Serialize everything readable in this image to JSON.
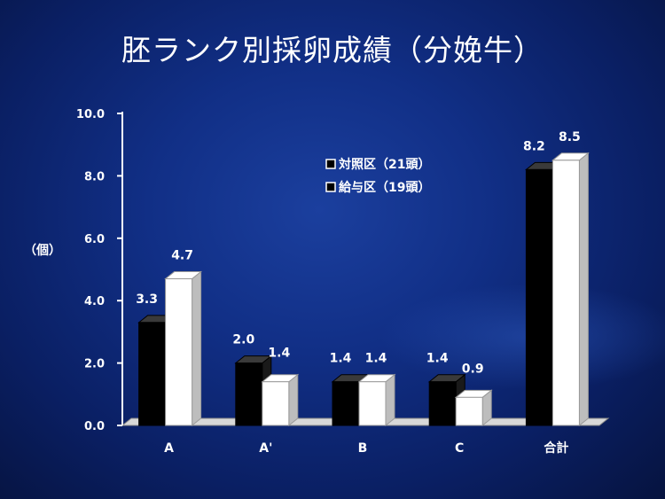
{
  "slide": {
    "title": "胚ランク別採卵成績（分娩牛）"
  },
  "chart_data": {
    "type": "bar",
    "title": "胚ランク別採卵成績（分娩牛）",
    "ylabel": "（個）",
    "xlabel": "",
    "categories": [
      "A",
      "A'",
      "B",
      "C",
      "合計"
    ],
    "ylim": [
      0,
      10
    ],
    "yticks": [
      "0.0",
      "2.0",
      "4.0",
      "6.0",
      "8.0",
      "10.0"
    ],
    "series": [
      {
        "name": "対照区（21頭）",
        "values": [
          3.3,
          2.0,
          1.4,
          1.4,
          8.2
        ],
        "labels": [
          "3.3",
          "2.0",
          "1.4",
          "1.4",
          "8.2"
        ],
        "color": "#000000"
      },
      {
        "name": "給与区（19頭）",
        "values": [
          4.7,
          1.4,
          1.4,
          0.9,
          8.5
        ],
        "labels": [
          "4.7",
          "1.4",
          "1.4",
          "0.9",
          "8.5"
        ],
        "color": "#ffffff"
      }
    ],
    "legend_position": "top-right",
    "grid": false,
    "style": "3d-bar"
  }
}
